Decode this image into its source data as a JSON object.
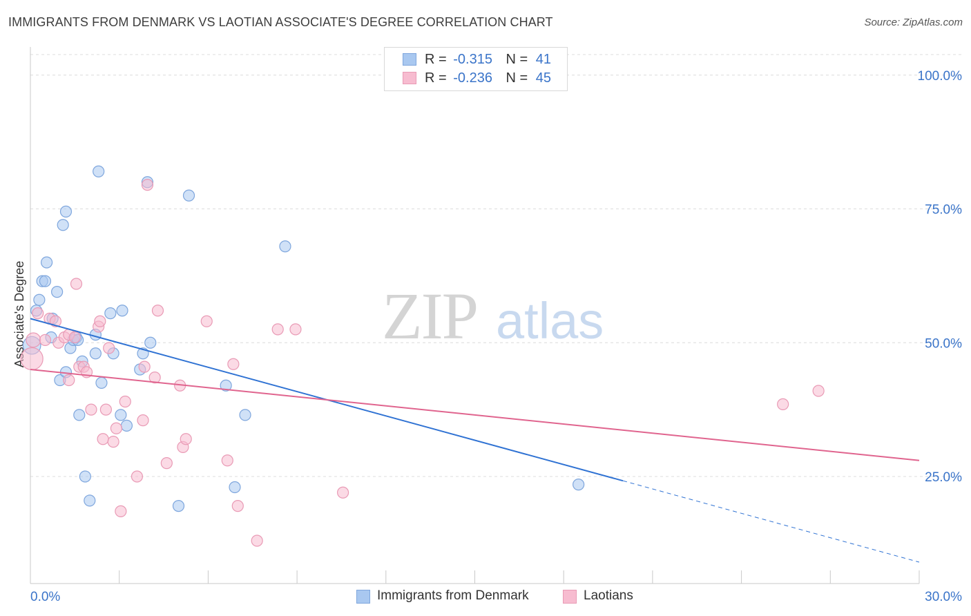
{
  "title": "IMMIGRANTS FROM DENMARK VS LAOTIAN ASSOCIATE'S DEGREE CORRELATION CHART",
  "source": "Source: ZipAtlas.com",
  "watermark": {
    "zip": "ZIP",
    "atlas": "atlas"
  },
  "legend_top": [
    {
      "r_label": "R =",
      "r_value": "-0.315",
      "n_label": "N =",
      "n_value": "41"
    },
    {
      "r_label": "R =",
      "r_value": "-0.236",
      "n_label": "N =",
      "n_value": "45"
    }
  ],
  "legend_bottom": [
    {
      "label": "Immigrants from Denmark"
    },
    {
      "label": "Laotians"
    }
  ],
  "colors": {
    "blue_fill": "#a9c8f0",
    "blue_stroke": "#7ea6dd",
    "blue_line": "#2f72d3",
    "pink_fill": "#f7bcd0",
    "pink_stroke": "#e99ab5",
    "pink_line": "#e0648e",
    "axis_label": "#3a74c9",
    "grid": "#dcdcdc"
  },
  "chart_data": {
    "type": "scatter",
    "title": "IMMIGRANTS FROM DENMARK VS LAOTIAN ASSOCIATE'S DEGREE CORRELATION CHART",
    "xlabel": "",
    "ylabel": "Associate's Degree",
    "xlim": [
      0,
      30
    ],
    "ylim": [
      5,
      105
    ],
    "x_tick_labels": [
      {
        "value": 0,
        "label": "0.0%"
      },
      {
        "value": 30,
        "label": "30.0%"
      }
    ],
    "x_minor_ticks": [
      3,
      6,
      9,
      12,
      15,
      18,
      21,
      24,
      27,
      30
    ],
    "y_ticks": [
      {
        "value": 100,
        "label": "100.0%"
      },
      {
        "value": 75,
        "label": "75.0%"
      },
      {
        "value": 50,
        "label": "50.0%"
      },
      {
        "value": 25,
        "label": "25.0%"
      }
    ],
    "series": [
      {
        "name": "Immigrants from Denmark",
        "color": "blue",
        "points": [
          [
            0.05,
            49.5,
            1.6
          ],
          [
            0.2,
            56.0,
            1
          ],
          [
            0.3,
            58.0,
            1
          ],
          [
            0.4,
            61.5,
            1
          ],
          [
            0.5,
            61.5,
            1
          ],
          [
            0.55,
            65.0,
            1
          ],
          [
            0.7,
            51.0,
            1
          ],
          [
            0.75,
            54.5,
            1
          ],
          [
            0.9,
            59.5,
            1
          ],
          [
            1.0,
            43.0,
            1
          ],
          [
            1.1,
            72.0,
            1
          ],
          [
            1.2,
            74.5,
            1
          ],
          [
            1.2,
            44.5,
            1
          ],
          [
            1.35,
            49.0,
            1
          ],
          [
            1.45,
            50.5,
            1
          ],
          [
            1.55,
            51.0,
            1
          ],
          [
            1.6,
            50.5,
            1
          ],
          [
            1.65,
            36.5,
            1
          ],
          [
            1.75,
            46.5,
            1
          ],
          [
            1.85,
            25.0,
            1
          ],
          [
            2.0,
            20.5,
            1
          ],
          [
            2.2,
            48.0,
            1
          ],
          [
            2.2,
            51.5,
            1
          ],
          [
            2.3,
            82.0,
            1
          ],
          [
            2.4,
            42.5,
            1
          ],
          [
            2.7,
            55.5,
            1
          ],
          [
            2.8,
            48.0,
            1
          ],
          [
            3.05,
            36.5,
            1
          ],
          [
            3.1,
            56.0,
            1
          ],
          [
            3.25,
            34.5,
            1
          ],
          [
            3.7,
            45.0,
            1
          ],
          [
            3.8,
            48.0,
            1
          ],
          [
            3.95,
            80.0,
            1
          ],
          [
            4.05,
            50.0,
            1
          ],
          [
            5.0,
            19.5,
            1
          ],
          [
            5.35,
            77.5,
            1
          ],
          [
            6.6,
            42.0,
            1
          ],
          [
            6.9,
            23.0,
            1
          ],
          [
            7.25,
            36.5,
            1
          ],
          [
            8.6,
            68.0,
            1
          ],
          [
            18.5,
            23.5,
            1
          ]
        ]
      },
      {
        "name": "Laotians",
        "color": "pink",
        "points": [
          [
            0.05,
            47.0,
            2.0
          ],
          [
            0.1,
            50.5,
            1.3
          ],
          [
            0.25,
            55.5,
            1
          ],
          [
            0.5,
            50.5,
            1
          ],
          [
            0.65,
            54.5,
            1
          ],
          [
            0.85,
            54.0,
            1
          ],
          [
            0.95,
            50.0,
            1
          ],
          [
            1.15,
            51.0,
            1
          ],
          [
            1.3,
            51.5,
            1
          ],
          [
            1.3,
            43.0,
            1
          ],
          [
            1.5,
            51.0,
            1
          ],
          [
            1.55,
            61.0,
            1
          ],
          [
            1.65,
            45.5,
            1
          ],
          [
            1.8,
            45.5,
            1
          ],
          [
            1.9,
            44.5,
            1
          ],
          [
            2.05,
            37.5,
            1
          ],
          [
            2.3,
            53.0,
            1
          ],
          [
            2.35,
            54.0,
            1
          ],
          [
            2.45,
            32.0,
            1
          ],
          [
            2.55,
            37.5,
            1
          ],
          [
            2.65,
            49.0,
            1
          ],
          [
            2.8,
            31.5,
            1
          ],
          [
            2.9,
            34.0,
            1
          ],
          [
            3.05,
            18.5,
            1
          ],
          [
            3.2,
            39.0,
            1
          ],
          [
            3.6,
            25.0,
            1
          ],
          [
            3.8,
            35.5,
            1
          ],
          [
            3.85,
            45.5,
            1
          ],
          [
            3.95,
            79.5,
            1
          ],
          [
            4.2,
            43.5,
            1
          ],
          [
            4.3,
            56.0,
            1
          ],
          [
            4.6,
            27.5,
            1
          ],
          [
            5.05,
            42.0,
            1
          ],
          [
            5.15,
            30.5,
            1
          ],
          [
            5.25,
            32.0,
            1
          ],
          [
            5.95,
            54.0,
            1
          ],
          [
            6.65,
            28.0,
            1
          ],
          [
            6.85,
            46.0,
            1
          ],
          [
            7.0,
            19.5,
            1
          ],
          [
            7.65,
            13.0,
            1
          ],
          [
            8.35,
            52.5,
            1
          ],
          [
            8.95,
            52.5,
            1
          ],
          [
            10.55,
            22.0,
            1
          ],
          [
            25.4,
            38.5,
            1
          ],
          [
            26.6,
            41.0,
            1
          ]
        ]
      }
    ],
    "trendlines": [
      {
        "series": "Immigrants from Denmark",
        "x0": 0,
        "y0": 54.5,
        "x1": 20,
        "y1": 24.2,
        "dashed_to_x": 30,
        "dashed_to_y": 9.0
      },
      {
        "series": "Laotians",
        "x0": 0,
        "y0": 45.0,
        "x1": 30,
        "y1": 28.0
      }
    ],
    "point_size_note": "third value in each point is a relative marker size"
  }
}
